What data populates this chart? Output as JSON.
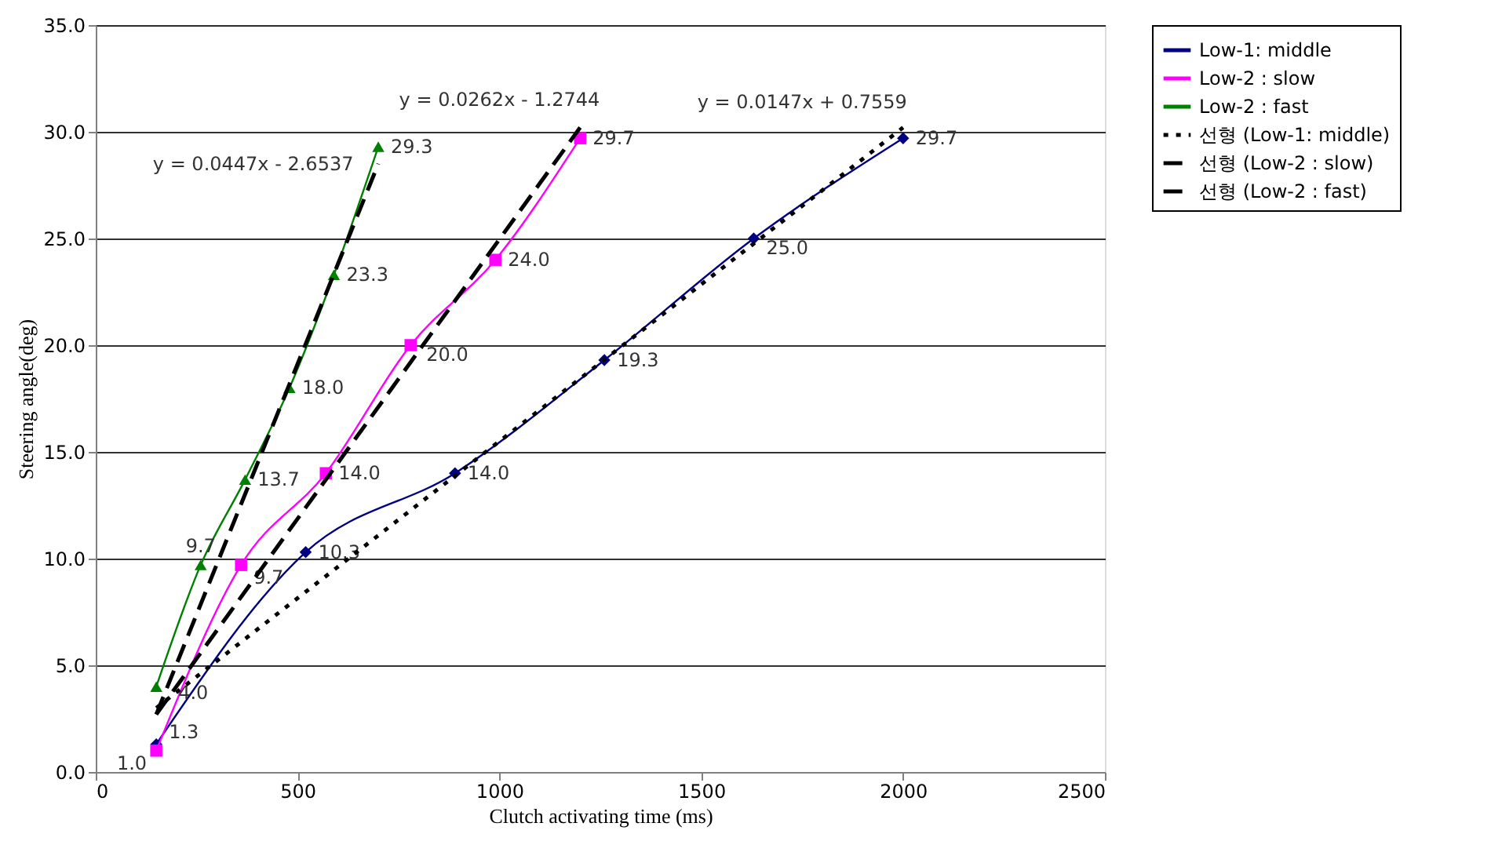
{
  "chart_data": {
    "type": "line",
    "xlabel": "Clutch activating time (ms)",
    "ylabel": "Steering angle(deg)",
    "xlim": [
      0,
      2500
    ],
    "xticks": [
      0,
      500,
      1000,
      1500,
      2000,
      2500
    ],
    "ylim": [
      0,
      35
    ],
    "yticks": [
      {
        "value": 0,
        "label": "0.0"
      },
      {
        "value": 5,
        "label": "5.0"
      },
      {
        "value": 10,
        "label": "10.0"
      },
      {
        "value": 15,
        "label": "15.0"
      },
      {
        "value": 20,
        "label": "20.0"
      },
      {
        "value": 25,
        "label": "25.0"
      },
      {
        "value": 30,
        "label": "30.0"
      },
      {
        "value": 35,
        "label": "35.0"
      }
    ],
    "grid": "y",
    "legend": "right",
    "series": [
      {
        "name": "Low-1: middle",
        "color": "#000080",
        "marker": "diamond",
        "line_style": "solid",
        "x": [
          150,
          520,
          890,
          1260,
          1630,
          2000
        ],
        "values": [
          1.3,
          10.3,
          14.0,
          19.3,
          25.0,
          29.7
        ],
        "value_labels": [
          "1.3",
          "10.3",
          "14.0",
          "19.3",
          "25.0",
          "29.7"
        ]
      },
      {
        "name": "Low-2 :  slow",
        "color": "#ff00ff",
        "marker": "square",
        "line_style": "solid",
        "x": [
          150,
          360,
          570,
          780,
          990,
          1200
        ],
        "values": [
          1.0,
          9.7,
          14.0,
          20.0,
          24.0,
          29.7
        ],
        "value_labels": [
          "1.0",
          "9.7",
          "14.0",
          "20.0",
          "24.0",
          "29.7"
        ]
      },
      {
        "name": "Low-2 : fast",
        "color": "#008000",
        "marker": "triangle",
        "line_style": "solid",
        "x": [
          150,
          260,
          370,
          480,
          590,
          700
        ],
        "values": [
          4.0,
          9.7,
          13.7,
          18.0,
          23.3,
          29.3
        ],
        "value_labels": [
          "4.0",
          "9.7",
          "13.7",
          "18.0",
          "23.3",
          "29.3"
        ]
      },
      {
        "name": "선형 (Low-1: middle)",
        "color": "#000000",
        "marker": "none",
        "line_style": "dotted",
        "x": [
          150,
          2000
        ],
        "values": [
          3.0,
          30.2
        ]
      },
      {
        "name": "선형 (Low-2 :  slow)",
        "color": "#000000",
        "marker": "none",
        "line_style": "dashed",
        "x": [
          150,
          1200
        ],
        "values": [
          2.7,
          30.2
        ]
      },
      {
        "name": "선형 (Low-2 : fast)",
        "color": "#000000",
        "marker": "none",
        "line_style": "dashed",
        "x": [
          150,
          700
        ],
        "values": [
          2.7,
          28.5
        ]
      }
    ],
    "annotations": [
      "y = 0.0447x - 2.6537",
      "y = 0.0262x - 1.2744",
      "y = 0.0147x + 0.7559"
    ]
  }
}
